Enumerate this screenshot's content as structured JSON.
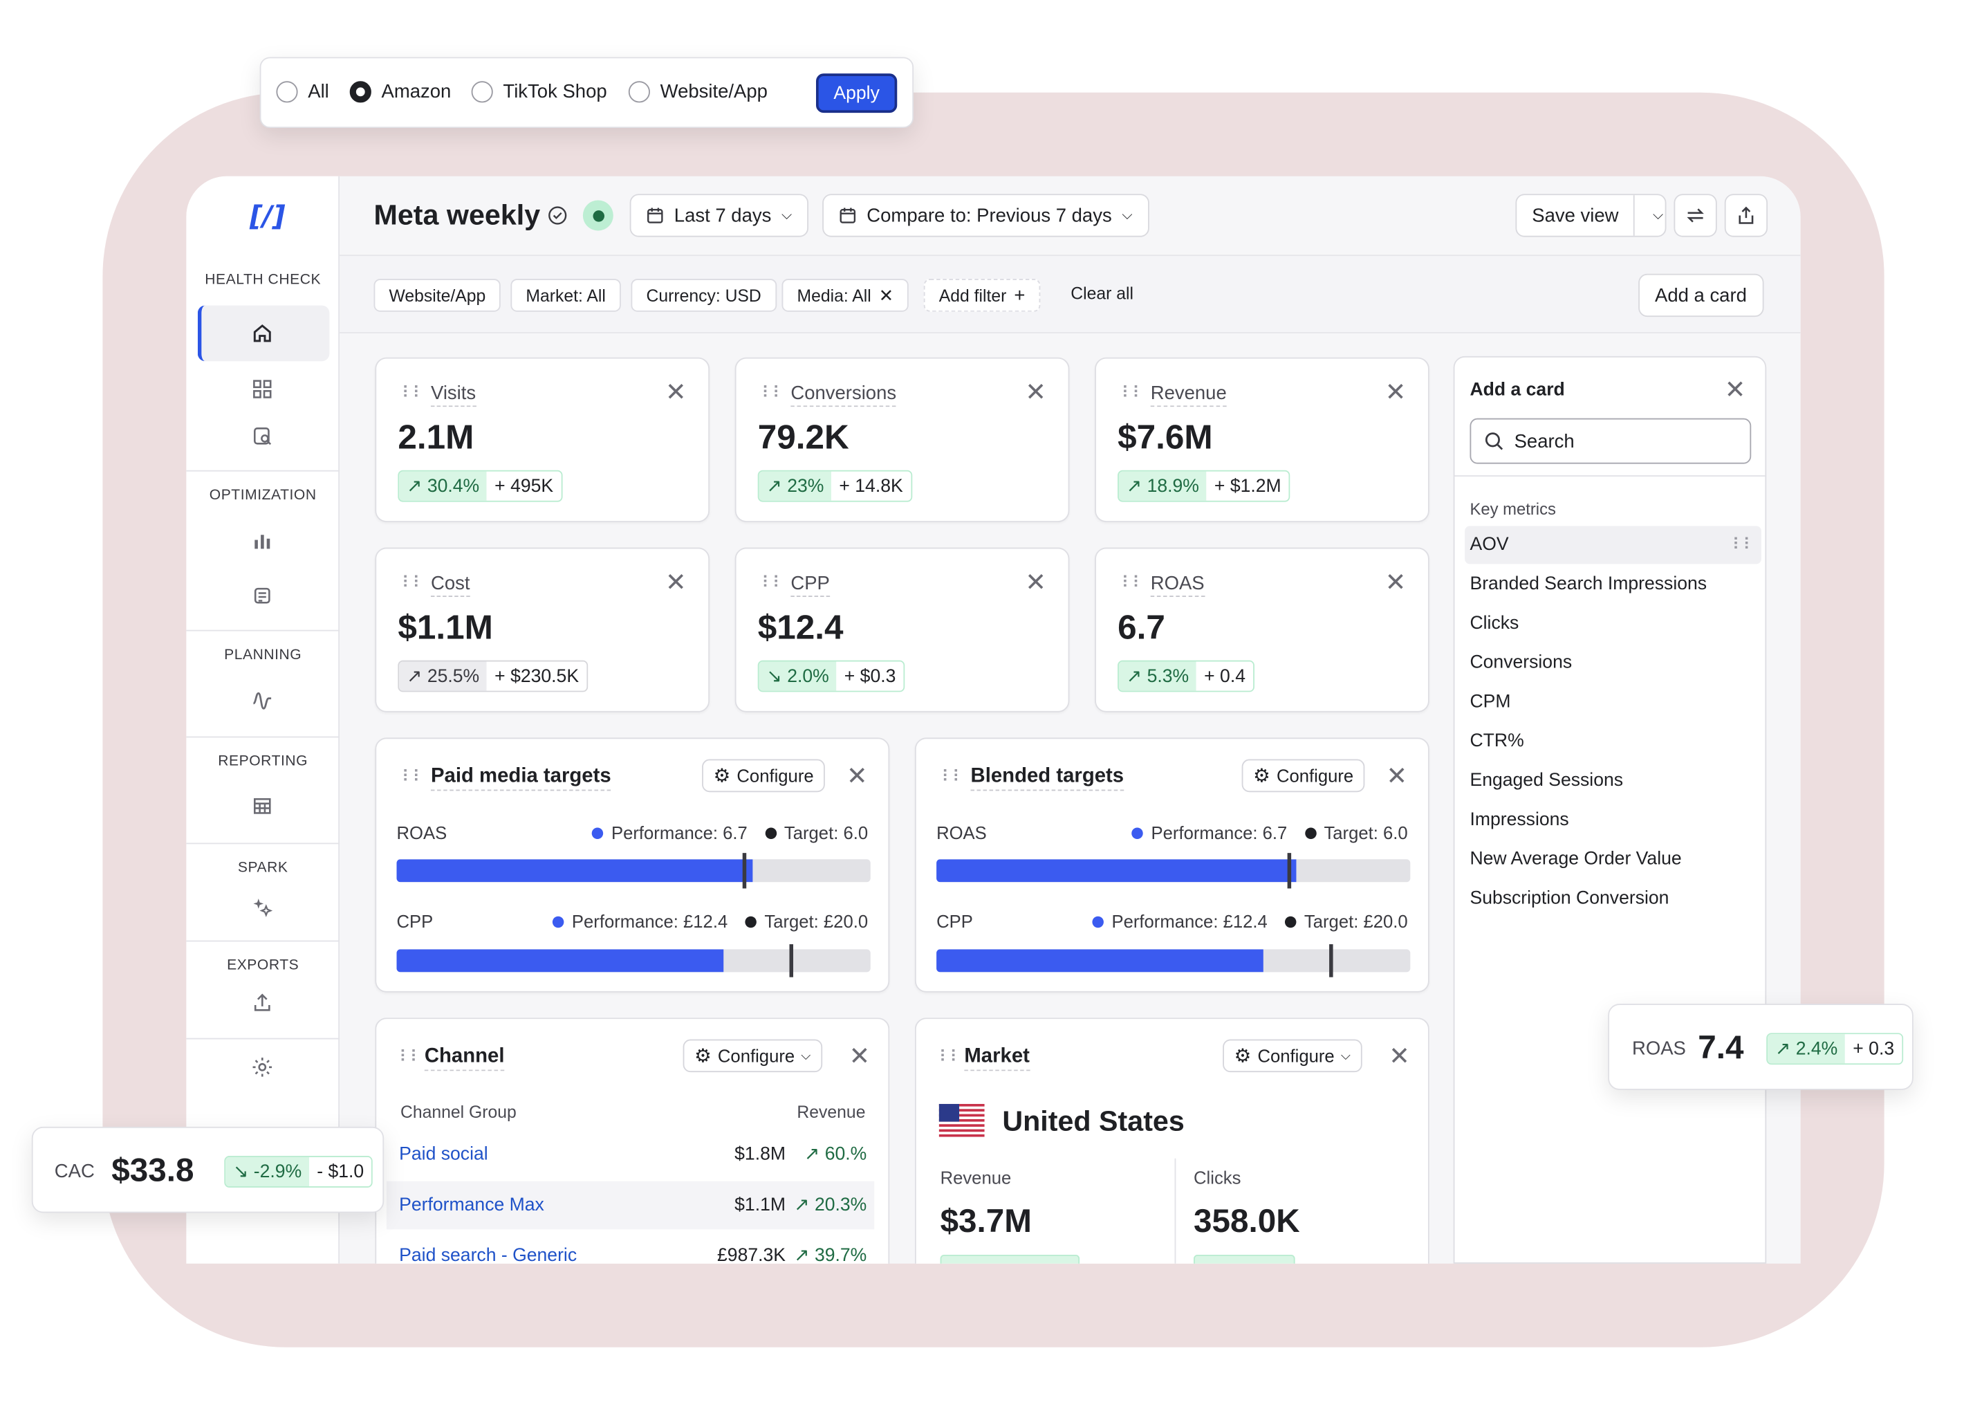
{
  "channel_selector": {
    "options": [
      {
        "label": "All",
        "selected": false
      },
      {
        "label": "Amazon",
        "selected": true
      },
      {
        "label": "TikTok Shop",
        "selected": false
      },
      {
        "label": "Website/App",
        "selected": false
      }
    ],
    "apply_label": "Apply"
  },
  "sidebar": {
    "logo": "[/]",
    "sections": [
      "HEALTH CHECK",
      "OPTIMIZATION",
      "PLANNING",
      "REPORTING",
      "SPARK",
      "EXPORTS"
    ],
    "icons": [
      "home-icon",
      "grid-icon",
      "search-doc-icon",
      "bar-chart-icon",
      "report-icon",
      "wave-icon",
      "table-icon",
      "sparkle-icon",
      "upload-icon",
      "gear-icon"
    ]
  },
  "header": {
    "title": "Meta weekly",
    "date_range": "Last 7 days",
    "compare": "Compare to: Previous 7 days",
    "save_view": "Save view"
  },
  "filters": {
    "chips": [
      "Website/App",
      "Market: All",
      "Currency: USD",
      "Media: All"
    ],
    "add_filter": "Add filter",
    "clear_all": "Clear all",
    "add_card": "Add a card"
  },
  "metrics": [
    {
      "label": "Visits",
      "value": "2.1M",
      "change": "30.4%",
      "delta": "+ 495K",
      "trend": "up"
    },
    {
      "label": "Conversions",
      "value": "79.2K",
      "change": "23%",
      "delta": "+ 14.8K",
      "trend": "up"
    },
    {
      "label": "Revenue",
      "value": "$7.6M",
      "change": "18.9%",
      "delta": "+ $1.2M",
      "trend": "up"
    },
    {
      "label": "Cost",
      "value": "$1.1M",
      "change": "25.5%",
      "delta": "+ $230.5K",
      "trend": "neutral"
    },
    {
      "label": "CPP",
      "value": "$12.4",
      "change": "2.0%",
      "delta": "+ $0.3",
      "trend": "down"
    },
    {
      "label": "ROAS",
      "value": "6.7",
      "change": "5.3%",
      "delta": "+ 0.4",
      "trend": "up"
    }
  ],
  "paid_targets": {
    "title": "Paid media targets",
    "configure": "Configure",
    "rows": [
      {
        "metric": "ROAS",
        "performance": "Performance: 6.7",
        "target": "Target: 6.0",
        "fill": 0.75,
        "marker": 0.73
      },
      {
        "metric": "CPP",
        "performance": "Performance: £12.4",
        "target": "Target: £20.0",
        "fill": 0.69,
        "marker": 0.83
      }
    ]
  },
  "blended_targets": {
    "title": "Blended targets",
    "configure": "Configure",
    "rows": [
      {
        "metric": "ROAS",
        "performance": "Performance: 6.7",
        "target": "Target: 6.0",
        "fill": 0.76,
        "marker": 0.74
      },
      {
        "metric": "CPP",
        "performance": "Performance: £12.4",
        "target": "Target: £20.0",
        "fill": 0.69,
        "marker": 0.83
      }
    ]
  },
  "channel": {
    "title": "Channel",
    "configure": "Configure",
    "col_group": "Channel Group",
    "col_revenue": "Revenue",
    "rows": [
      {
        "name": "Paid social",
        "revenue": "$1.8M",
        "change": "60.%"
      },
      {
        "name": "Performance Max",
        "revenue": "$1.1M",
        "change": "20.3%"
      },
      {
        "name": "Paid search - Generic",
        "revenue": "£987.3K",
        "change": "39.7%"
      }
    ]
  },
  "market": {
    "title": "Market",
    "configure": "Configure",
    "country": "United States",
    "revenue_label": "Revenue",
    "revenue_value": "$3.7M",
    "clicks_label": "Clicks",
    "clicks_value": "358.0K"
  },
  "add_card_panel": {
    "title": "Add a card",
    "search_placeholder": "Search",
    "section": "Key metrics",
    "items": [
      "AOV",
      "Branded Search Impressions",
      "Clicks",
      "Conversions",
      "CPM",
      "CTR%",
      "Engaged Sessions",
      "Impressions",
      "New Average Order Value",
      "Subscription Conversion"
    ]
  },
  "float_cac": {
    "label": "CAC",
    "value": "$33.8",
    "change": "-2.9%",
    "delta": "- $1.0"
  },
  "float_roas": {
    "label": "ROAS",
    "value": "7.4",
    "change": "2.4%",
    "delta": "+ 0.3"
  },
  "colors": {
    "accent": "#2b55e6",
    "bar": "#3b5bf0",
    "positive_bg": "#d9f6e5",
    "frame": "#eddedf"
  }
}
